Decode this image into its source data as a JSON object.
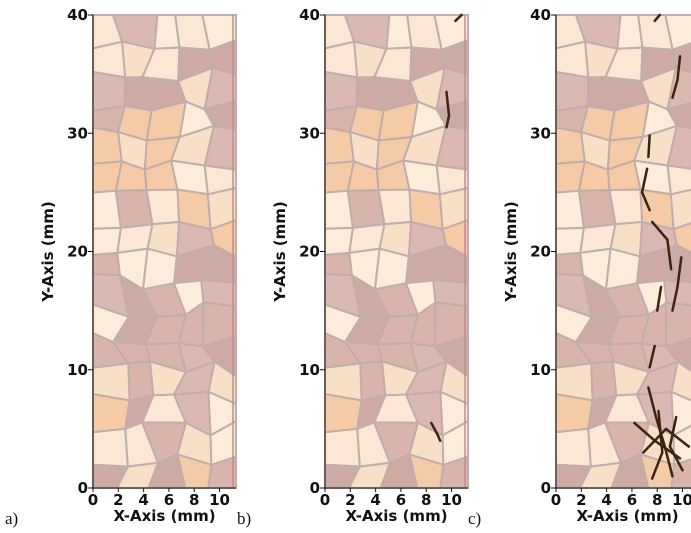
{
  "chart_data": [
    {
      "type": "image",
      "panel_label": "a)",
      "xlabel": "X-Axis (mm)",
      "ylabel": "Y-Axis (mm)",
      "xlim": [
        0,
        11.3
      ],
      "ylim": [
        0,
        40
      ],
      "xticks": [
        0,
        2,
        4,
        6,
        8,
        10
      ],
      "yticks": [
        0,
        10,
        20,
        30,
        40
      ]
    },
    {
      "type": "image",
      "panel_label": "b)",
      "xlabel": "X-Axis (mm)",
      "ylabel": "Y-Axis (mm)",
      "xlim": [
        0,
        11.3
      ],
      "ylim": [
        0,
        40
      ],
      "xticks": [
        0,
        2,
        4,
        6,
        8,
        10
      ],
      "yticks": [
        0,
        10,
        20,
        30,
        40
      ]
    },
    {
      "type": "image",
      "panel_label": "c)",
      "xlabel": "X-Axis (mm)",
      "ylabel": "Y-Axis (mm)",
      "xlim": [
        0,
        11.3
      ],
      "ylim": [
        0,
        40
      ],
      "xticks": [
        0,
        2,
        4,
        6,
        8,
        10
      ],
      "yticks": [
        0,
        10,
        20,
        30,
        40
      ]
    }
  ]
}
